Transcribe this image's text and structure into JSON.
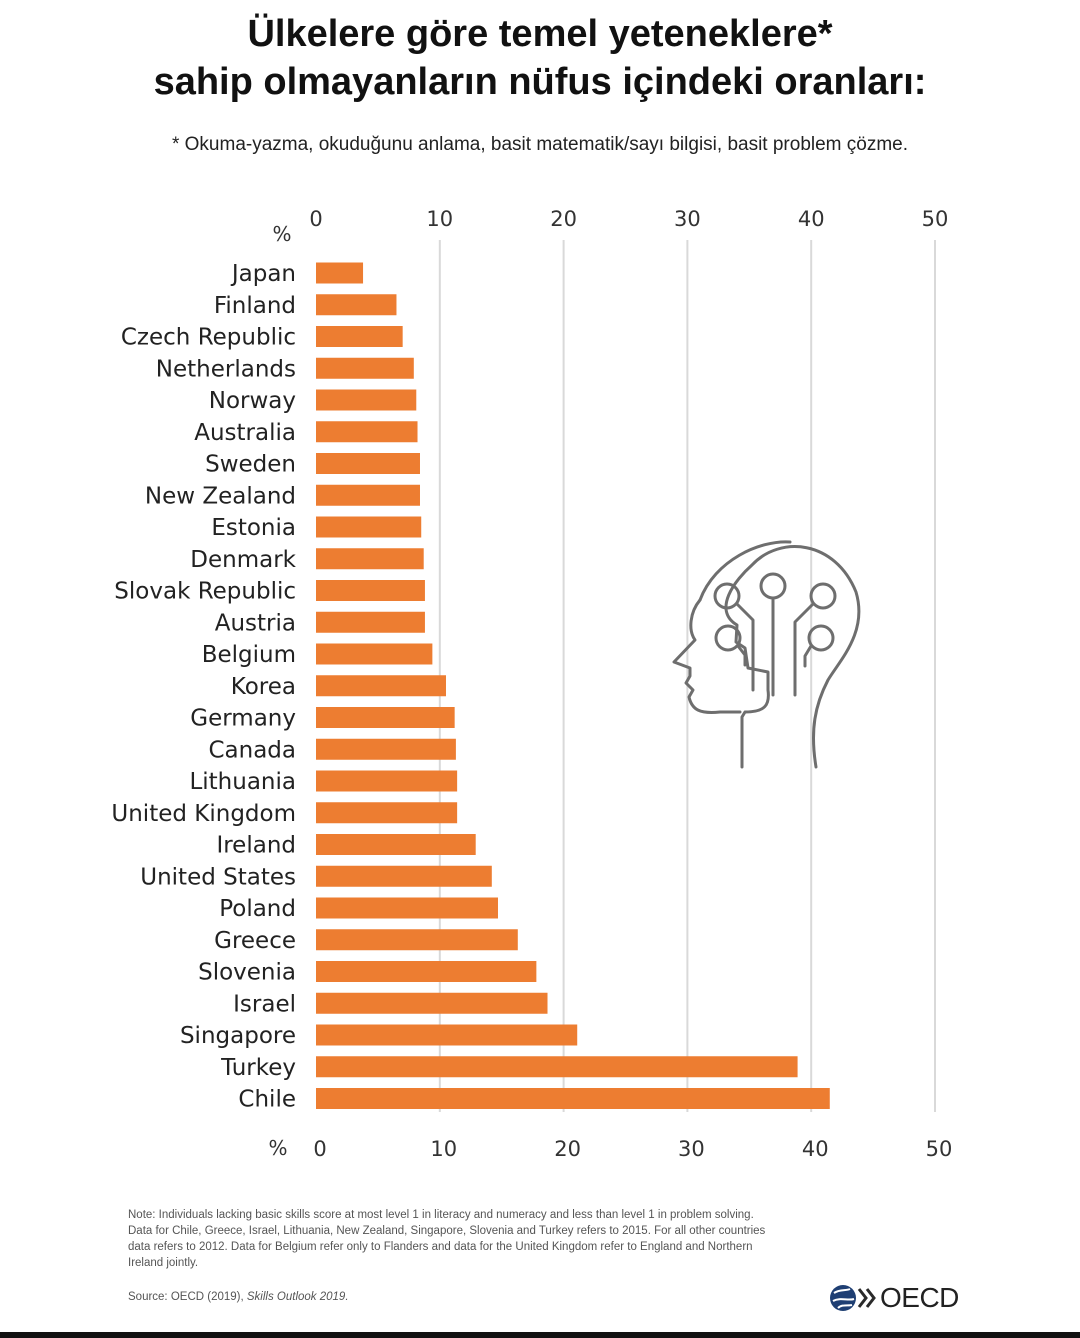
{
  "title_line1": "Ülkelere göre temel yeteneklere*",
  "title_line2": "sahip olmayanların nüfus içindeki oranları:",
  "subtitle": "* Okuma-yazma, okuduğunu anlama, basit matematik/sayı bilgisi, basit problem çözme.",
  "note_lines": [
    "Note: Individuals lacking basic skills score at most level 1 in literacy and numeracy and less than level 1 in problem solving.",
    "Data for Chile, Greece, Israel, Lithuania, New Zealand, Singapore, Slovenia and Turkey refers to 2015. For all other countries",
    "data refers to 2012. Data for Belgium refer only to Flanders and data for the United Kingdom refer to England and Northern",
    "Ireland jointly."
  ],
  "source_prefix": "Source: OECD (2019), ",
  "source_title": "Skills Outlook 2019.",
  "logo_text": "OECD",
  "icon": "head-circuit-icon",
  "colors": {
    "bar": "#ed7d31",
    "grid": "#d9d9d9",
    "icon": "#6e6e6e"
  },
  "chart_data": {
    "type": "bar",
    "orientation": "horizontal",
    "axis_unit_label": "%",
    "xlim": [
      0,
      50
    ],
    "xticks": [
      0,
      10,
      20,
      30,
      40,
      50
    ],
    "grid": true,
    "categories": [
      "Japan",
      "Finland",
      "Czech Republic",
      "Netherlands",
      "Norway",
      "Australia",
      "Sweden",
      "New Zealand",
      "Estonia",
      "Denmark",
      "Slovak Republic",
      "Austria",
      "Belgium",
      "Korea",
      "Germany",
      "Canada",
      "Lithuania",
      "United Kingdom",
      "Ireland",
      "United States",
      "Poland",
      "Greece",
      "Slovenia",
      "Israel",
      "Singapore",
      "Turkey",
      "Chile"
    ],
    "values": [
      3.8,
      6.5,
      7.0,
      7.9,
      8.1,
      8.2,
      8.4,
      8.4,
      8.5,
      8.7,
      8.8,
      8.8,
      9.4,
      10.5,
      11.2,
      11.3,
      11.4,
      11.4,
      12.9,
      14.2,
      14.7,
      16.3,
      17.8,
      18.7,
      21.1,
      38.9,
      41.5
    ]
  }
}
